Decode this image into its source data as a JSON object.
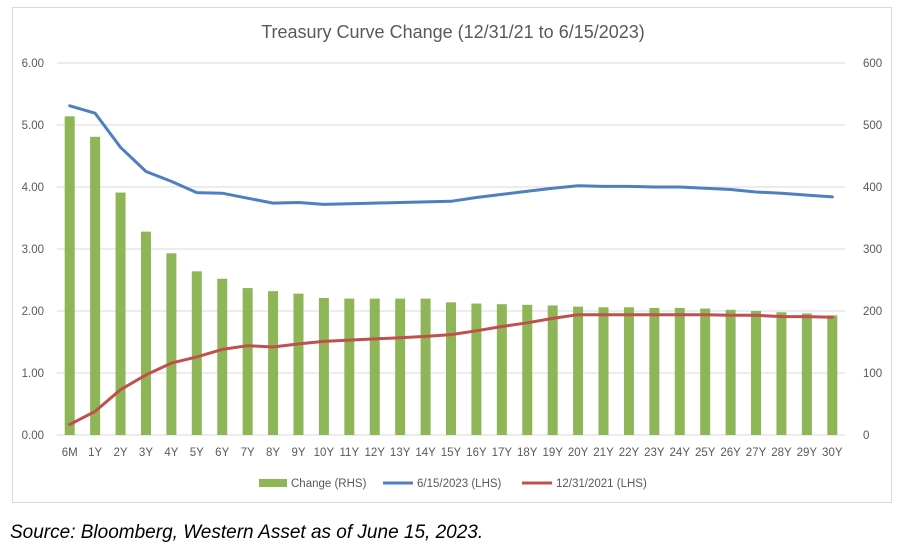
{
  "chart_data": {
    "type": "bar",
    "title": "Treasury Curve Change (12/31/21 to 6/15/2023)",
    "categories": [
      "6M",
      "1Y",
      "2Y",
      "3Y",
      "4Y",
      "5Y",
      "6Y",
      "7Y",
      "8Y",
      "9Y",
      "10Y",
      "11Y",
      "12Y",
      "13Y",
      "14Y",
      "15Y",
      "16Y",
      "17Y",
      "18Y",
      "19Y",
      "20Y",
      "21Y",
      "22Y",
      "23Y",
      "24Y",
      "25Y",
      "26Y",
      "27Y",
      "28Y",
      "29Y",
      "30Y"
    ],
    "left_axis": {
      "ylim": [
        0,
        6
      ],
      "ticks": [
        "0.00",
        "1.00",
        "2.00",
        "3.00",
        "4.00",
        "5.00",
        "6.00"
      ]
    },
    "right_axis": {
      "ylim": [
        0,
        600
      ],
      "ticks": [
        "0",
        "100",
        "200",
        "300",
        "400",
        "500",
        "600"
      ]
    },
    "grid": true,
    "legend_position": "bottom",
    "series": [
      {
        "name": "Change (RHS)",
        "kind": "bar",
        "axis": "right",
        "color": "#8fb656",
        "values": [
          514,
          481,
          391,
          328,
          293,
          264,
          252,
          237,
          232,
          228,
          221,
          220,
          220,
          220,
          220,
          214,
          212,
          211,
          210,
          209,
          207,
          206,
          206,
          205,
          205,
          204,
          202,
          200,
          198,
          196,
          193
        ]
      },
      {
        "name": "6/15/2023 (LHS)",
        "kind": "line",
        "axis": "left",
        "color": "#4f7fc0",
        "values": [
          5.31,
          5.19,
          4.64,
          4.25,
          4.09,
          3.91,
          3.9,
          3.82,
          3.74,
          3.75,
          3.72,
          3.73,
          3.74,
          3.75,
          3.76,
          3.77,
          3.83,
          3.88,
          3.93,
          3.98,
          4.02,
          4.01,
          4.01,
          4.0,
          4.0,
          3.98,
          3.96,
          3.92,
          3.9,
          3.87,
          3.84
        ]
      },
      {
        "name": "12/31/2021 (LHS)",
        "kind": "line",
        "axis": "left",
        "color": "#c0504d",
        "values": [
          0.17,
          0.38,
          0.73,
          0.97,
          1.16,
          1.26,
          1.38,
          1.44,
          1.42,
          1.47,
          1.51,
          1.53,
          1.55,
          1.57,
          1.59,
          1.62,
          1.68,
          1.75,
          1.81,
          1.88,
          1.94,
          1.94,
          1.94,
          1.94,
          1.94,
          1.94,
          1.93,
          1.93,
          1.91,
          1.91,
          1.9
        ]
      }
    ]
  },
  "source_note": "Source: Bloomberg, Western Asset as of June 15, 2023."
}
